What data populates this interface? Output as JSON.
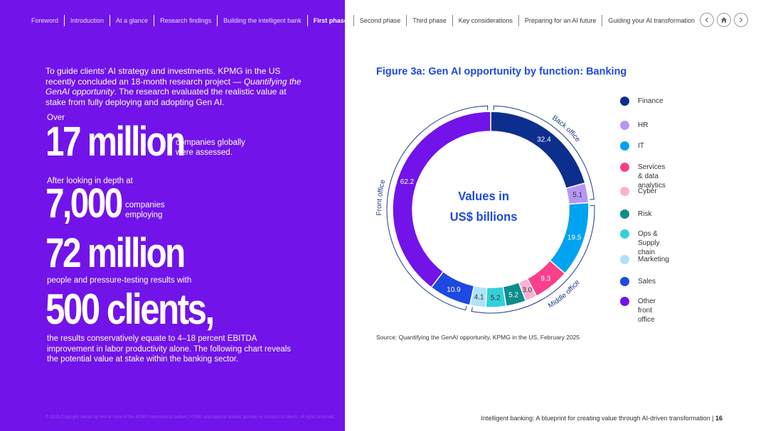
{
  "nav": {
    "items": [
      "Foreword",
      "Introduction",
      "At a glance",
      "Research findings",
      "Building the intelligent bank",
      "First phase",
      "Second phase",
      "Third phase",
      "Key considerations",
      "Preparing for an AI future",
      "Guiding your AI transformation"
    ],
    "active": "First phase",
    "icons": [
      "chevron-left-icon",
      "home-icon",
      "chevron-right-icon"
    ]
  },
  "left": {
    "intro_1": "To guide clients’ AI strategy and investments, KPMG in the US recently concluded an 18-month research project — ",
    "intro_em": "Quantifying the GenAI opportunity",
    "intro_2": ". The research evaluated the realistic value at stake from fully deploying and adopting Gen AI.",
    "stat1_pre": "Over",
    "stat1_big": "17 million",
    "stat1_side": "companies globally were assessed.",
    "stat2_pre": "After looking in depth at",
    "stat2_big": "7,000",
    "stat2_side": "companies employing",
    "stat3_big": "72 million",
    "stat3_post": "people and pressure-testing results with",
    "stat4_big": "500 clients,",
    "closing": "the results conservatively equate to 4–18 percent EBITDA improvement in labor productivity alone. The following chart reveals the potential value at stake within the banking sector."
  },
  "footer": {
    "copyright": "© 2025 Copyright owned by one or more of the KPMG International entities. KPMG International entities provide no services to clients. All rights reserved.",
    "doc_title": "Intelligent banking: A blueprint for creating value through AI-driven transformation",
    "page": "16"
  },
  "chart_data": {
    "type": "donut",
    "title": "Figure 3a: Gen AI opportunity by function: Banking",
    "center_label_line1": "Values in",
    "center_label_line2": "US$ billions",
    "unit": "US$ billions",
    "series": [
      {
        "name": "Finance",
        "value": 32.4,
        "color": "#0c2f8e",
        "group": "Back office"
      },
      {
        "name": "HR",
        "value": 5.1,
        "color": "#b497f5",
        "group": "Back office"
      },
      {
        "name": "IT",
        "value": 19.5,
        "color": "#00a3f0",
        "group": "Middle office"
      },
      {
        "name": "Services\n& data analytics",
        "value": 9.3,
        "color": "#fa3f8c",
        "group": "Middle office"
      },
      {
        "name": "Cyber",
        "value": 3.0,
        "color": "#fbb0d0",
        "group": "Middle office"
      },
      {
        "name": "Risk",
        "value": 5.2,
        "color": "#0e8c8c",
        "group": "Middle office"
      },
      {
        "name": "Ops &\nSupply chain",
        "value": 5.2,
        "color": "#33d0d8",
        "group": "Middle office"
      },
      {
        "name": "Marketing",
        "value": 4.1,
        "color": "#aee2f8",
        "group": "Middle office"
      },
      {
        "name": "Sales",
        "value": 10.9,
        "color": "#1e49e2",
        "group": "Front office"
      },
      {
        "name": "Other\nfront office",
        "value": 62.2,
        "color": "#7213ea",
        "group": "Front office"
      }
    ],
    "groups": [
      {
        "label": "Back office"
      },
      {
        "label": "Middle office"
      },
      {
        "label": "Front office"
      }
    ],
    "source": "Source: Quantifying the GenAI opportunity, KPMG in the US, February 2025"
  }
}
